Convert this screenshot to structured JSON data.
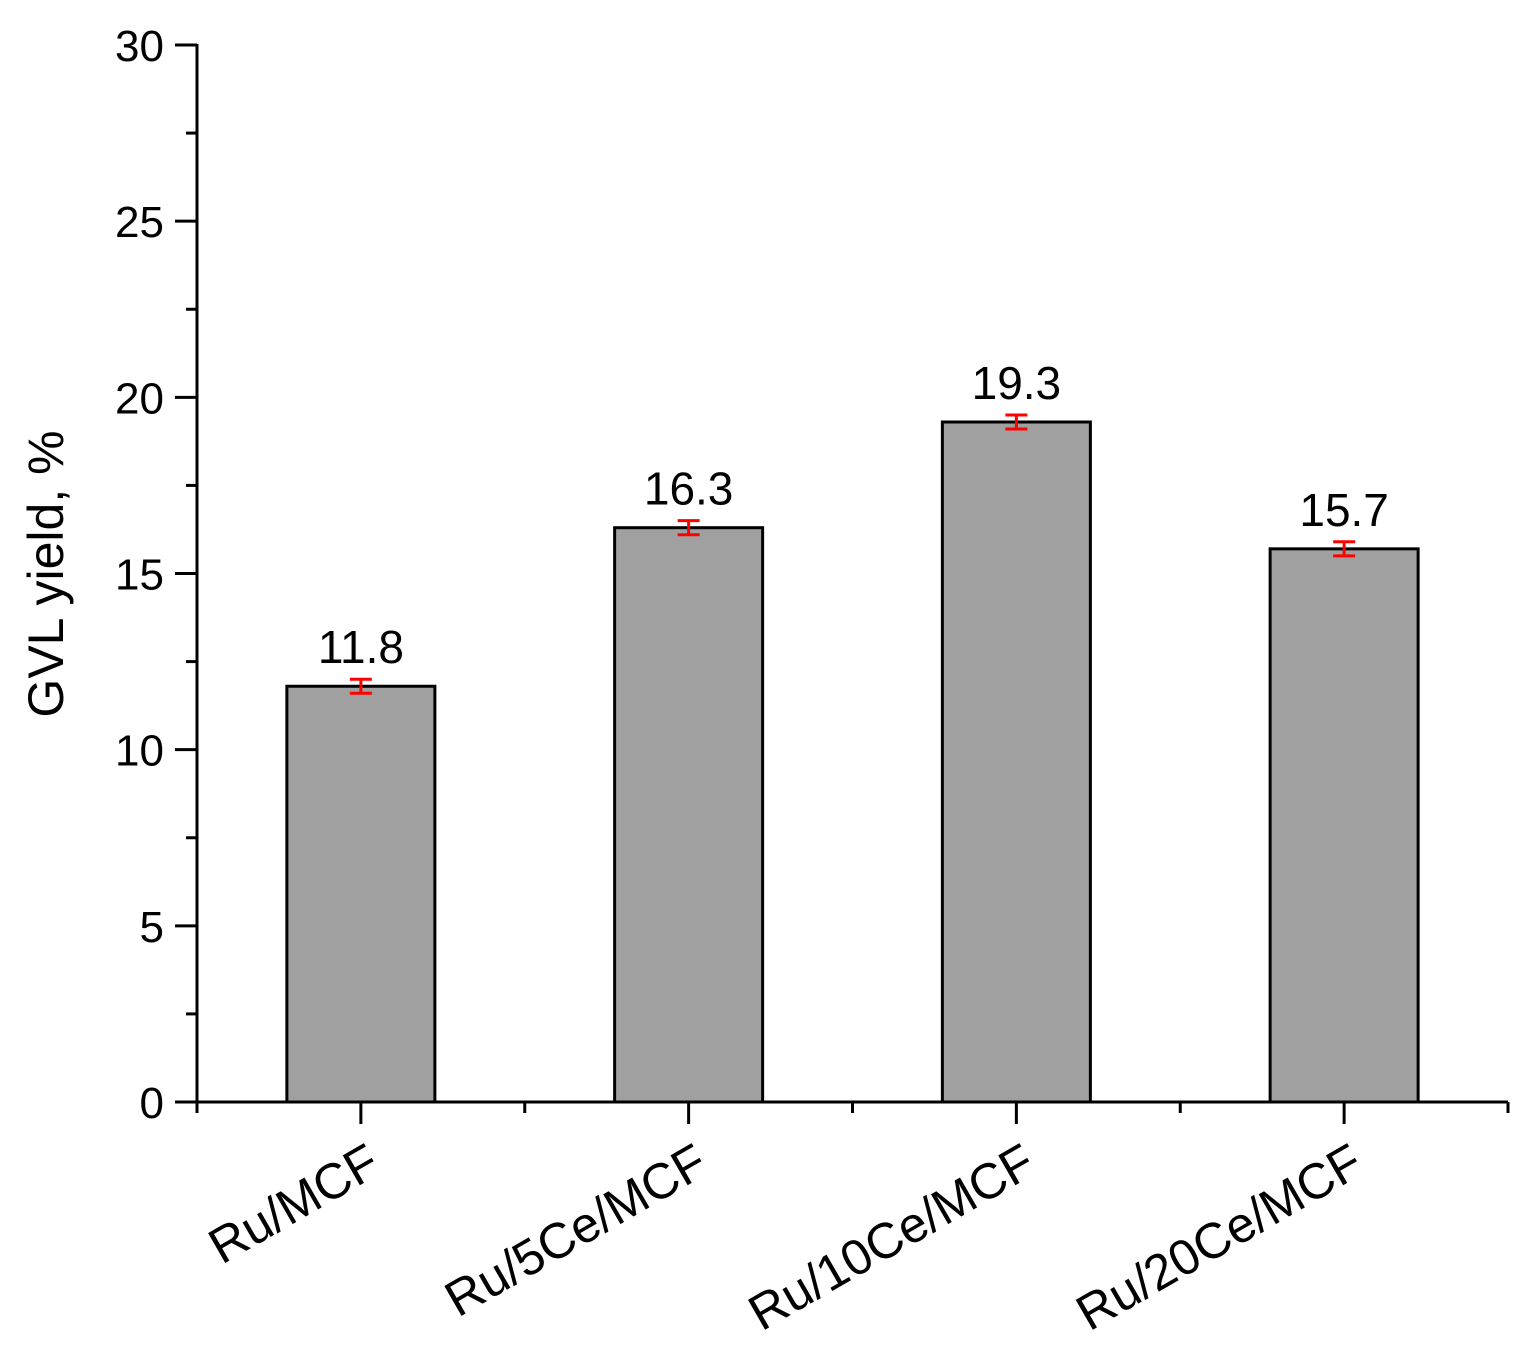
{
  "chart_data": {
    "type": "bar",
    "categories": [
      "Ru/MCF",
      "Ru/5Ce/MCF",
      "Ru/10Ce/MCF",
      "Ru/20Ce/MCF"
    ],
    "values": [
      11.8,
      16.3,
      19.3,
      15.7
    ],
    "value_labels": [
      "11.8",
      "16.3",
      "19.3",
      "15.7"
    ],
    "errors": [
      0.2,
      0.2,
      0.2,
      0.2
    ],
    "ylabel": "GVL yield, %",
    "xlabel": "",
    "ylim": [
      0,
      30
    ],
    "yticks": [
      0,
      5,
      10,
      15,
      20,
      25,
      30
    ],
    "ytick_labels": [
      "0",
      "5",
      "10",
      "15",
      "20",
      "25",
      "30"
    ],
    "grid": false,
    "legend": "none",
    "colors": {
      "bar_fill": "#a0a0a0",
      "bar_stroke": "#000000",
      "error_bar": "#ff0000",
      "axis": "#000000"
    }
  }
}
